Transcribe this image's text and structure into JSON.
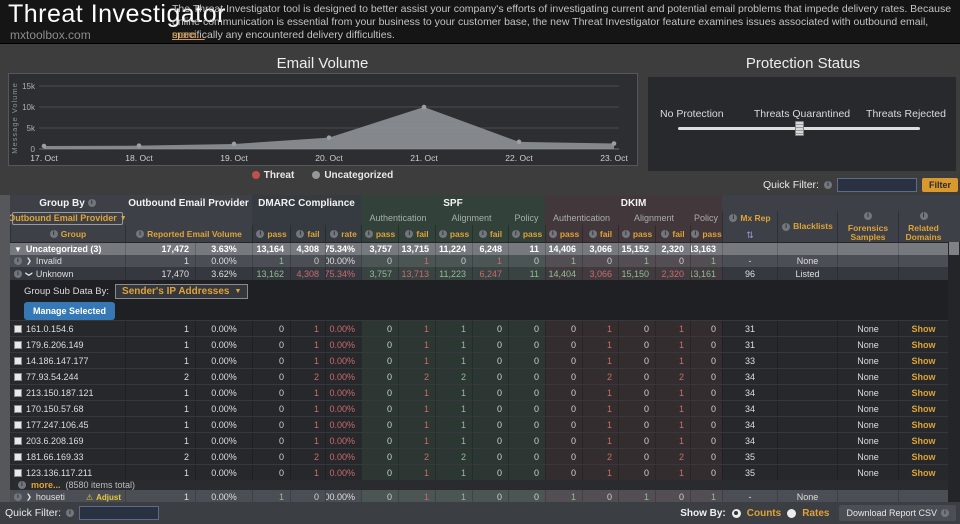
{
  "header": {
    "title": "Threat Investigator",
    "site": "mxtoolbox.com",
    "description": "The Threat Investigator tool is designed to better assist your company's efforts of investigating current and potential email problems that impede delivery rates. Because online communication is essential from your business to your customer base, the new Threat Investigator feature examines issues associated with outbound email, specifically any encountered delivery difficulties.",
    "more_link": "more..."
  },
  "email_volume": {
    "title": "Email Volume"
  },
  "chart_data": {
    "type": "area",
    "title": "Email Volume",
    "x": [
      "17. Oct",
      "18. Oct",
      "19. Oct",
      "20. Oct",
      "21. Oct",
      "22. Oct",
      "23. Oct"
    ],
    "series": [
      {
        "name": "Threat",
        "color": "#c0504d",
        "values": [
          0,
          0,
          0,
          0,
          0,
          0,
          0
        ]
      },
      {
        "name": "Uncategorized",
        "color": "#94979b",
        "values": [
          700,
          800,
          1200,
          2700,
          10000,
          1700,
          1300
        ]
      }
    ],
    "ylabel": "Message Volume",
    "ylim": [
      0,
      15000
    ],
    "yticks": [
      {
        "label": "0",
        "value": 0
      },
      {
        "label": "5k",
        "value": 5000
      },
      {
        "label": "10k",
        "value": 10000
      },
      {
        "label": "15k",
        "value": 15000
      }
    ],
    "grid": true,
    "legend_position": "bottom"
  },
  "protection": {
    "title": "Protection Status",
    "labels": [
      "No Protection",
      "Threats Quarantined",
      "Threats Rejected"
    ],
    "slider_position": 0.5
  },
  "quick_filter_top": {
    "label": "Quick Filter:",
    "value": "",
    "button": "Filter"
  },
  "table": {
    "group_by_label": "Group By",
    "group_by_dropdown": "Outbound Email Provider",
    "group_col_label": "Group",
    "provider_header": "Outbound Email Provider",
    "volume_label": "Reported Email Volume",
    "sections": {
      "dmarc": "DMARC Compliance",
      "spf": "SPF",
      "dkim": "DKIM"
    },
    "subsections": {
      "auth": "Authentication",
      "align": "Alignment",
      "policy": "Policy"
    },
    "stat_labels": {
      "pass": "pass",
      "fail": "fail",
      "rate": "rate"
    },
    "tail_columns": [
      "Mx Rep",
      "Blacklists",
      "Forensics Samples",
      "Related Domains"
    ],
    "group_rows": [
      {
        "name": "Uncategorized (3)",
        "expand": "tri-down",
        "plain": true,
        "cells": [
          "17,472",
          "3.63%",
          "13,164",
          "4,308",
          "75.34%",
          "3,757",
          "13,715",
          "11,224",
          "6,248",
          "11",
          "14,406",
          "3,066",
          "15,152",
          "2,320",
          "13,163",
          "",
          "",
          "",
          ""
        ]
      },
      {
        "name": "Invalid",
        "expand": "chev-right",
        "info": true,
        "cells": [
          "1",
          "0.00%",
          "1",
          "0",
          "100.00%",
          "0",
          "1",
          "0",
          "1",
          "0",
          "1",
          "0",
          "1",
          "0",
          "1",
          "-",
          "None",
          "",
          ""
        ]
      },
      {
        "name": "Unknown",
        "expand": "chev-down",
        "info": true,
        "cells": [
          "17,470",
          "3.62%",
          "13,162",
          "4,308",
          "75.34%",
          "3,757",
          "13,713",
          "11,223",
          "6,247",
          "11",
          "14,404",
          "3,066",
          "15,150",
          "2,320",
          "13,161",
          "96",
          "Listed",
          "",
          ""
        ]
      }
    ],
    "sub_panel": {
      "label": "Group Sub Data By:",
      "dropdown": "Sender's IP Addresses",
      "button": "Manage Selected"
    },
    "ip_rows": [
      {
        "ip": "161.0.154.6",
        "cells": [
          "1",
          "0.00%",
          "0",
          "1",
          "0.00%",
          "0",
          "1",
          "1",
          "0",
          "0",
          "0",
          "1",
          "0",
          "1",
          "0",
          "31",
          "",
          "None",
          "Show"
        ]
      },
      {
        "ip": "179.6.206.149",
        "cells": [
          "1",
          "0.00%",
          "0",
          "1",
          "0.00%",
          "0",
          "1",
          "1",
          "0",
          "0",
          "0",
          "1",
          "0",
          "1",
          "0",
          "31",
          "",
          "None",
          "Show"
        ]
      },
      {
        "ip": "14.186.147.177",
        "cells": [
          "1",
          "0.00%",
          "0",
          "1",
          "0.00%",
          "0",
          "1",
          "1",
          "0",
          "0",
          "0",
          "1",
          "0",
          "1",
          "0",
          "33",
          "",
          "None",
          "Show"
        ]
      },
      {
        "ip": "77.93.54.244",
        "cells": [
          "2",
          "0.00%",
          "0",
          "2",
          "0.00%",
          "0",
          "2",
          "2",
          "0",
          "0",
          "0",
          "2",
          "0",
          "2",
          "0",
          "34",
          "",
          "None",
          "Show"
        ]
      },
      {
        "ip": "213.150.187.121",
        "cells": [
          "1",
          "0.00%",
          "0",
          "1",
          "0.00%",
          "0",
          "1",
          "1",
          "0",
          "0",
          "0",
          "1",
          "0",
          "1",
          "0",
          "34",
          "",
          "None",
          "Show"
        ]
      },
      {
        "ip": "170.150.57.68",
        "cells": [
          "1",
          "0.00%",
          "0",
          "1",
          "0.00%",
          "0",
          "1",
          "1",
          "0",
          "0",
          "0",
          "1",
          "0",
          "1",
          "0",
          "34",
          "",
          "None",
          "Show"
        ]
      },
      {
        "ip": "177.247.106.45",
        "cells": [
          "1",
          "0.00%",
          "0",
          "1",
          "0.00%",
          "0",
          "1",
          "1",
          "0",
          "0",
          "0",
          "1",
          "0",
          "1",
          "0",
          "34",
          "",
          "None",
          "Show"
        ]
      },
      {
        "ip": "203.6.208.169",
        "cells": [
          "1",
          "0.00%",
          "0",
          "1",
          "0.00%",
          "0",
          "1",
          "1",
          "0",
          "0",
          "0",
          "1",
          "0",
          "1",
          "0",
          "34",
          "",
          "None",
          "Show"
        ]
      },
      {
        "ip": "181.66.169.33",
        "cells": [
          "2",
          "0.00%",
          "0",
          "2",
          "0.00%",
          "0",
          "2",
          "2",
          "0",
          "0",
          "0",
          "2",
          "0",
          "2",
          "0",
          "35",
          "",
          "None",
          "Show"
        ]
      },
      {
        "ip": "123.136.117.211",
        "cells": [
          "1",
          "0.00%",
          "0",
          "1",
          "0.00%",
          "0",
          "1",
          "1",
          "0",
          "0",
          "0",
          "1",
          "0",
          "1",
          "0",
          "35",
          "",
          "None",
          "Show"
        ]
      }
    ],
    "more_row": {
      "link": "more...",
      "count": "(8580 items total)"
    },
    "houseti_row": {
      "name": "houseti",
      "adjust": "Adjust",
      "info": true,
      "expand": "chev-right",
      "cells": [
        "1",
        "0.00%",
        "1",
        "0",
        "100.00%",
        "0",
        "1",
        "1",
        "0",
        "0",
        "1",
        "0",
        "1",
        "0",
        "1",
        "-",
        "None",
        "",
        ""
      ]
    }
  },
  "footer": {
    "quick_filter_label": "Quick Filter:",
    "show_by": "Show By:",
    "counts": "Counts",
    "rates": "Rates",
    "download": "Download Report CSV"
  }
}
